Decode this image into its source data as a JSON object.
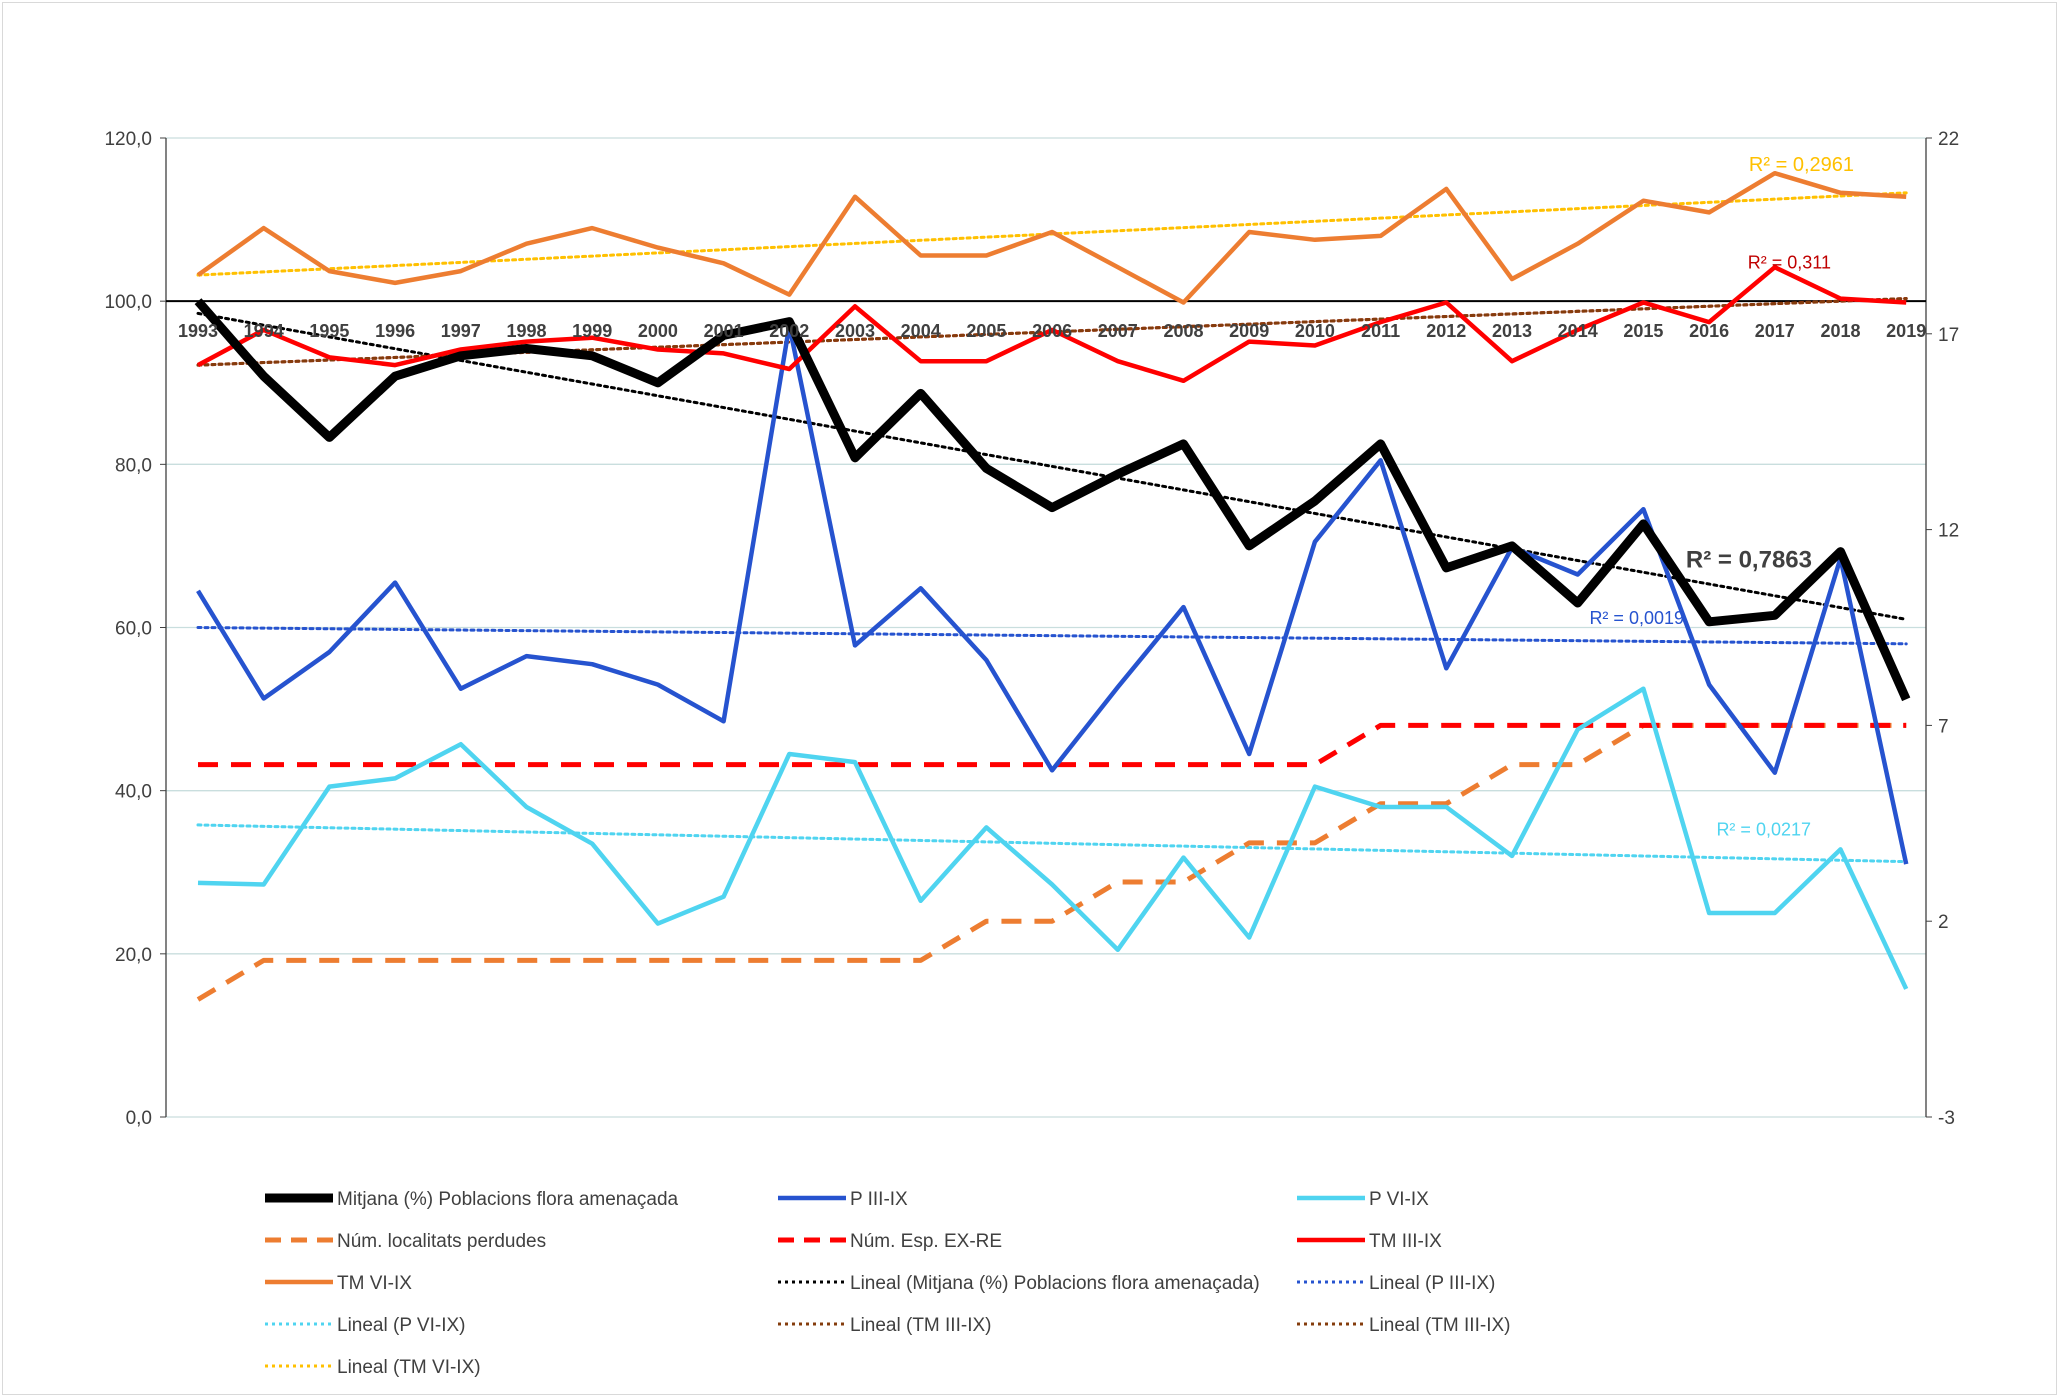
{
  "chart_data": {
    "type": "line",
    "x": [
      "1993",
      "1994",
      "1995",
      "1996",
      "1997",
      "1998",
      "1999",
      "2000",
      "2001",
      "2002",
      "2003",
      "2004",
      "2005",
      "2006",
      "2007",
      "2008",
      "2009",
      "2010",
      "2011",
      "2012",
      "2013",
      "2014",
      "2015",
      "2016",
      "2017",
      "2018",
      "2019"
    ],
    "y_left": {
      "ylim": [
        0,
        120
      ],
      "ticks": [
        0,
        20,
        40,
        60,
        80,
        100,
        120
      ],
      "tick_labels": [
        "0,0",
        "20,0",
        "40,0",
        "60,0",
        "80,0",
        "100,0",
        "120,0"
      ]
    },
    "y_right": {
      "ylim": [
        -3,
        22
      ],
      "ticks": [
        -3,
        2,
        7,
        12,
        17,
        22
      ],
      "tick_labels": [
        "-3",
        "2",
        "7",
        "12",
        "17",
        "22"
      ]
    },
    "x_labels_at_y": 100,
    "grid": "horizontal",
    "legend_position": "bottom",
    "series": [
      {
        "name": "Mitjana (%) Poblacions flora amenaçada",
        "axis": "left",
        "color": "#000000",
        "style": "solid-thick",
        "values": [
          100.0,
          90.8,
          83.3,
          90.8,
          93.3,
          94.2,
          93.3,
          90.0,
          95.8,
          97.5,
          80.8,
          88.7,
          79.5,
          74.7,
          78.8,
          82.5,
          70.0,
          75.5,
          82.5,
          67.3,
          70.0,
          63.0,
          72.7,
          60.7,
          61.5,
          69.3,
          51.2
        ]
      },
      {
        "name": "P III-IX",
        "axis": "left",
        "color": "#2653cf",
        "style": "solid",
        "values": [
          64.5,
          51.3,
          57.0,
          65.5,
          52.5,
          56.5,
          55.5,
          53.0,
          48.5,
          97.0,
          57.8,
          64.8,
          56.0,
          42.5,
          52.7,
          62.5,
          44.5,
          70.5,
          80.5,
          55.0,
          69.8,
          66.5,
          74.5,
          53.0,
          42.2,
          68.5,
          31.0
        ]
      },
      {
        "name": "P VI-IX",
        "axis": "left",
        "color": "#4fd4f0",
        "style": "solid",
        "values": [
          28.7,
          28.5,
          40.5,
          41.5,
          45.7,
          38.0,
          33.5,
          23.7,
          27.0,
          44.5,
          43.5,
          26.5,
          35.5,
          28.5,
          20.5,
          31.8,
          22.0,
          40.5,
          38.0,
          38.0,
          32.0,
          47.5,
          52.5,
          25.0,
          25.0,
          32.8,
          15.7
        ]
      },
      {
        "name": "Núm. localitats perdudes",
        "axis": "right",
        "color": "#ed7d31",
        "style": "dashed",
        "values": [
          0.0,
          1.0,
          1.0,
          1.0,
          1.0,
          1.0,
          1.0,
          1.0,
          1.0,
          1.0,
          1.0,
          1.0,
          2.0,
          2.0,
          3.0,
          3.0,
          4.0,
          4.0,
          5.0,
          5.0,
          6.0,
          6.0,
          7.0,
          7.0,
          7.0,
          7.0,
          7.0
        ]
      },
      {
        "name": "Núm. Esp. EX-RE",
        "axis": "right",
        "color": "#ff0000",
        "style": "dashed",
        "values": [
          6.0,
          6.0,
          6.0,
          6.0,
          6.0,
          6.0,
          6.0,
          6.0,
          6.0,
          6.0,
          6.0,
          6.0,
          6.0,
          6.0,
          6.0,
          6.0,
          6.0,
          6.0,
          7.0,
          7.0,
          7.0,
          7.0,
          7.0,
          7.0,
          7.0,
          7.0,
          7.0
        ]
      },
      {
        "name": "TM III-IX",
        "axis": "right",
        "color": "#ff0000",
        "style": "solid",
        "values": [
          16.2,
          17.1,
          16.4,
          16.2,
          16.6,
          16.8,
          16.9,
          16.6,
          16.5,
          16.1,
          17.7,
          16.3,
          16.3,
          17.1,
          16.3,
          15.8,
          16.8,
          16.7,
          17.3,
          17.8,
          16.3,
          17.1,
          17.8,
          17.3,
          18.7,
          17.9,
          17.8
        ]
      },
      {
        "name": "TM VI-IX",
        "axis": "right",
        "color": "#ed7d31",
        "style": "solid",
        "values": [
          18.5,
          19.7,
          18.6,
          18.3,
          18.6,
          19.3,
          19.7,
          19.2,
          18.8,
          18.0,
          20.5,
          19.0,
          19.0,
          19.6,
          18.7,
          17.8,
          19.6,
          19.4,
          19.5,
          20.7,
          18.4,
          19.3,
          20.4,
          20.1,
          21.1,
          20.6,
          20.5
        ]
      }
    ],
    "trendlines": [
      {
        "name": "Lineal (Mitjana (%) Poblacions flora amenaçada)",
        "axis": "left",
        "color": "#000000",
        "start": 98.5,
        "end": 61.0,
        "r2_label": "R² = 0,7863"
      },
      {
        "name": "Lineal (P III-IX)",
        "axis": "left",
        "color": "#2653cf",
        "start": 60.0,
        "end": 58.0,
        "r2_label": "R² = 0,0019"
      },
      {
        "name": "Lineal (P VI-IX)",
        "axis": "left",
        "color": "#4fd4f0",
        "start": 35.8,
        "end": 31.3,
        "r2_label": "R² = 0,0217"
      },
      {
        "name": "Lineal (TM III-IX)",
        "axis": "right",
        "color": "#c00000",
        "start": 16.2,
        "end": 17.9,
        "r2_label": "R² = 0,311"
      },
      {
        "name": "Lineal (TM III-IX)",
        "axis": "right",
        "color": "#843c0c",
        "start": 16.2,
        "end": 17.9,
        "r2_label": ""
      },
      {
        "name": "Lineal (TM VI-IX)",
        "axis": "right",
        "color": "#ffc000",
        "start": 18.5,
        "end": 20.6,
        "r2_label": "R² = 0,2961"
      }
    ],
    "legend": [
      {
        "label": "Mitjana (%) Poblacions flora amenaçada",
        "color": "#000000",
        "style": "solid-thick"
      },
      {
        "label": "P III-IX",
        "color": "#2653cf",
        "style": "solid"
      },
      {
        "label": "P VI-IX",
        "color": "#4fd4f0",
        "style": "solid"
      },
      {
        "label": "Núm. localitats perdudes",
        "color": "#ed7d31",
        "style": "dashed"
      },
      {
        "label": "Núm. Esp. EX-RE",
        "color": "#ff0000",
        "style": "dashed"
      },
      {
        "label": "TM III-IX",
        "color": "#ff0000",
        "style": "solid"
      },
      {
        "label": "TM VI-IX",
        "color": "#ed7d31",
        "style": "solid"
      },
      {
        "label": "Lineal (Mitjana (%) Poblacions flora amenaçada)",
        "color": "#000000",
        "style": "dotted"
      },
      {
        "label": "Lineal (P III-IX)",
        "color": "#2653cf",
        "style": "dotted"
      },
      {
        "label": "Lineal (P VI-IX)",
        "color": "#4fd4f0",
        "style": "dotted"
      },
      {
        "label": "Lineal (TM III-IX)",
        "color": "#843c0c",
        "style": "dotted"
      },
      {
        "label": "Lineal (TM III-IX)",
        "color": "#843c0c",
        "style": "dotted"
      },
      {
        "label": "Lineal (TM VI-IX)",
        "color": "#ffc000",
        "style": "dotted"
      }
    ]
  }
}
